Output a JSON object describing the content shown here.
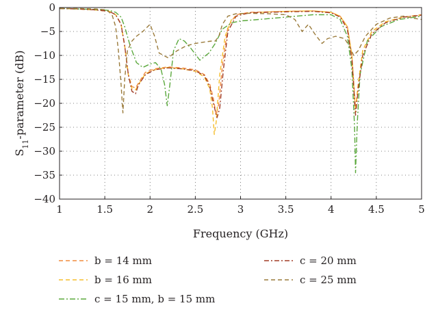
{
  "chart_data": {
    "type": "line",
    "title": "",
    "xlabel": "Frequency (GHz)",
    "ylabel": "S11-parameter (dB)",
    "ylabel_main": "S",
    "ylabel_sub": "11",
    "ylabel_rest": "-parameter (dB)",
    "xlim": [
      1,
      5
    ],
    "ylim": [
      -40,
      0
    ],
    "xticks": [
      1,
      1.5,
      2,
      2.5,
      3,
      3.5,
      4,
      4.5,
      5
    ],
    "xtick_labels": [
      "1",
      "1.5",
      "2",
      "2.5",
      "3",
      "3.5",
      "4",
      "4.5",
      "5"
    ],
    "yticks": [
      0,
      -5,
      -10,
      -15,
      -20,
      -25,
      -30,
      -35,
      -40
    ],
    "ytick_labels": [
      "0",
      "−5",
      "−10",
      "−15",
      "−20",
      "−25",
      "−30",
      "−35",
      "−40"
    ],
    "grid": true,
    "legend_position": "bottom",
    "series": [
      {
        "name": "b = 14 mm",
        "color": "#f08a3c",
        "dash": "6,4",
        "x": [
          1,
          1.2,
          1.4,
          1.55,
          1.62,
          1.68,
          1.72,
          1.76,
          1.8,
          1.84,
          1.88,
          1.95,
          2.05,
          2.2,
          2.35,
          2.5,
          2.6,
          2.66,
          2.7,
          2.73,
          2.76,
          2.8,
          2.86,
          2.95,
          3.1,
          3.5,
          3.8,
          4.0,
          4.1,
          4.18,
          4.23,
          4.27,
          4.3,
          4.35,
          4.45,
          4.6,
          4.8,
          5
        ],
        "y": [
          -0.2,
          -0.3,
          -0.5,
          -0.8,
          -1.5,
          -3.5,
          -8,
          -14,
          -16.5,
          -16.8,
          -15.5,
          -13.5,
          -12.8,
          -12.4,
          -12.6,
          -13,
          -14,
          -16,
          -19,
          -22.5,
          -20,
          -12,
          -4,
          -1.5,
          -1,
          -0.8,
          -0.7,
          -1,
          -1.8,
          -4,
          -10,
          -21,
          -16,
          -9,
          -5,
          -3,
          -2,
          -1.5
        ]
      },
      {
        "name": "b = 16 mm",
        "color": "#f5bd2a",
        "dash": "6,4",
        "x": [
          1,
          1.2,
          1.4,
          1.55,
          1.62,
          1.68,
          1.72,
          1.76,
          1.8,
          1.84,
          1.88,
          1.95,
          2.05,
          2.2,
          2.35,
          2.5,
          2.6,
          2.66,
          2.69,
          2.71,
          2.73,
          2.77,
          2.83,
          2.9,
          3.0,
          3.2,
          3.5,
          3.8,
          4.0,
          4.1,
          4.18,
          4.23,
          4.27,
          4.3,
          4.35,
          4.45,
          4.6,
          4.8,
          5
        ],
        "y": [
          -0.2,
          -0.3,
          -0.5,
          -0.8,
          -1.5,
          -3.5,
          -8,
          -14,
          -17,
          -17.2,
          -15.8,
          -13.8,
          -13,
          -12.5,
          -12.8,
          -13.3,
          -14.5,
          -17,
          -21,
          -26.5,
          -24,
          -14,
          -6,
          -2.5,
          -1.3,
          -1,
          -0.8,
          -0.7,
          -1,
          -1.8,
          -4,
          -10,
          -22,
          -16,
          -9,
          -5,
          -3,
          -2,
          -1.6
        ]
      },
      {
        "name": "c = 15 mm, b = 15 mm",
        "color": "#5aa83c",
        "dash": "8,3,2,3",
        "x": [
          1,
          1.2,
          1.4,
          1.55,
          1.62,
          1.68,
          1.72,
          1.78,
          1.85,
          1.92,
          2.0,
          2.06,
          2.12,
          2.16,
          2.19,
          2.22,
          2.26,
          2.32,
          2.38,
          2.45,
          2.55,
          2.65,
          2.72,
          2.8,
          2.9,
          3.0,
          3.2,
          3.5,
          3.8,
          4.0,
          4.1,
          4.18,
          4.23,
          4.26,
          4.27,
          4.29,
          4.32,
          4.4,
          4.55,
          4.75,
          5
        ],
        "y": [
          -0.2,
          -0.3,
          -0.4,
          -0.6,
          -1,
          -2,
          -4,
          -8,
          -11.5,
          -12.5,
          -11.8,
          -11.5,
          -12.8,
          -16,
          -20.5,
          -16,
          -9,
          -6.5,
          -7,
          -8.5,
          -11,
          -9.5,
          -7.5,
          -4.5,
          -3.2,
          -2.8,
          -2.5,
          -2,
          -1.5,
          -1.5,
          -2.5,
          -6,
          -13,
          -25,
          -34.5,
          -24,
          -14,
          -7,
          -4,
          -2.5,
          -1.8
        ]
      },
      {
        "name": "c = 20 mm",
        "color": "#a03a24",
        "dash": "7,3,2,3",
        "x": [
          1,
          1.2,
          1.4,
          1.55,
          1.62,
          1.68,
          1.72,
          1.76,
          1.8,
          1.84,
          1.87,
          1.95,
          2.05,
          2.2,
          2.35,
          2.5,
          2.6,
          2.66,
          2.7,
          2.74,
          2.77,
          2.81,
          2.86,
          2.95,
          3.1,
          3.5,
          3.8,
          4.0,
          4.1,
          4.18,
          4.23,
          4.27,
          4.3,
          4.35,
          4.45,
          4.6,
          4.8,
          5
        ],
        "y": [
          -0.2,
          -0.3,
          -0.5,
          -0.8,
          -1.5,
          -3.5,
          -8,
          -14,
          -17.5,
          -18,
          -16.2,
          -14,
          -13,
          -12.6,
          -12.8,
          -13.2,
          -14.2,
          -16.5,
          -20,
          -23,
          -21,
          -13,
          -5,
          -1.8,
          -1.1,
          -0.9,
          -0.8,
          -1.1,
          -2,
          -4.5,
          -11,
          -22.5,
          -17,
          -10,
          -5.5,
          -3.2,
          -2,
          -1.6
        ]
      },
      {
        "name": "c = 25 mm",
        "color": "#9a7a3a",
        "dash": "6,4",
        "x": [
          1,
          1.2,
          1.4,
          1.52,
          1.58,
          1.62,
          1.65,
          1.68,
          1.7,
          1.72,
          1.75,
          1.8,
          1.85,
          1.92,
          2.0,
          2.05,
          2.1,
          2.2,
          2.3,
          2.4,
          2.5,
          2.6,
          2.68,
          2.72,
          2.76,
          2.8,
          2.86,
          2.95,
          3.1,
          3.3,
          3.5,
          3.6,
          3.68,
          3.75,
          3.82,
          3.9,
          3.96,
          4.05,
          4.15,
          4.2,
          4.25,
          4.3,
          4.38,
          4.5,
          4.65,
          4.8,
          4.9,
          5
        ],
        "y": [
          -0.2,
          -0.2,
          -0.3,
          -0.5,
          -1.5,
          -4,
          -9,
          -16,
          -22,
          -15,
          -9,
          -7,
          -6,
          -5,
          -3.5,
          -6,
          -9.5,
          -10.5,
          -9,
          -8,
          -7.5,
          -7.2,
          -7,
          -7,
          -6,
          -3.5,
          -1.8,
          -1.3,
          -1.2,
          -1.3,
          -1.5,
          -2.5,
          -5,
          -3.5,
          -5.5,
          -7.5,
          -6.5,
          -6,
          -6.5,
          -8,
          -10,
          -9,
          -6,
          -3.5,
          -2.2,
          -1.8,
          -2.2,
          -2.5
        ]
      }
    ]
  }
}
